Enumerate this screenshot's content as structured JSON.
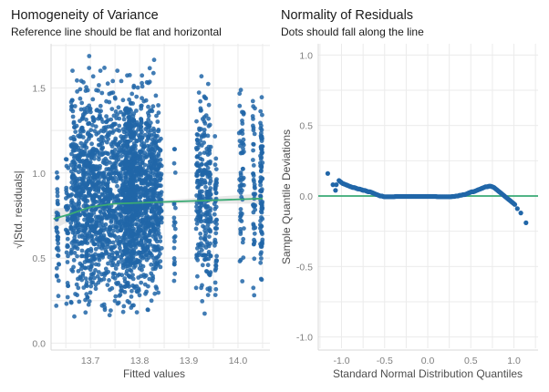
{
  "chart_data": [
    {
      "type": "scatter",
      "title": "Homogeneity of Variance",
      "subtitle": "Reference line should be flat and horizontal",
      "xlabel": "Fitted values",
      "ylabel": "√|Std. residuals|",
      "xlim": [
        13.62,
        14.065
      ],
      "ylim": [
        -0.03,
        1.76
      ],
      "xticks": [
        13.7,
        13.8,
        13.9,
        14.0
      ],
      "xtick_labels": [
        "13.7",
        "13.8",
        "13.9",
        "14.0"
      ],
      "yticks": [
        0.0,
        0.5,
        1.0,
        1.5
      ],
      "ytick_labels": [
        "0.0",
        "0.5",
        "1.0",
        "1.5"
      ],
      "grid": true,
      "point_color": "#2166a8",
      "smooth_color": "#3aaa74",
      "band_color": "#d9d9d9",
      "point_clusters": [
        {
          "x_min": 13.63,
          "x_max": 13.636,
          "y_min": 0.05,
          "y_max": 1.23,
          "count": 40
        },
        {
          "x_min": 13.65,
          "x_max": 13.655,
          "y_min": 0.1,
          "y_max": 1.25,
          "count": 35
        },
        {
          "x_min": 13.66,
          "x_max": 13.79,
          "y_min": 0.02,
          "y_max": 1.72,
          "count": 1400
        },
        {
          "x_min": 13.77,
          "x_max": 13.84,
          "y_min": 0.05,
          "y_max": 1.7,
          "count": 900
        },
        {
          "x_min": 13.84,
          "x_max": 13.845,
          "y_min": 0.15,
          "y_max": 1.55,
          "count": 40
        },
        {
          "x_min": 13.87,
          "x_max": 13.873,
          "y_min": 0.1,
          "y_max": 1.3,
          "count": 22
        },
        {
          "x_min": 13.915,
          "x_max": 13.945,
          "y_min": 0.08,
          "y_max": 1.65,
          "count": 260
        },
        {
          "x_min": 13.952,
          "x_max": 13.957,
          "y_min": 0.05,
          "y_max": 1.4,
          "count": 45
        },
        {
          "x_min": 14.002,
          "x_max": 14.012,
          "y_min": 0.25,
          "y_max": 1.75,
          "count": 60
        },
        {
          "x_min": 14.03,
          "x_max": 14.035,
          "y_min": 0.15,
          "y_max": 1.75,
          "count": 45
        },
        {
          "x_min": 14.045,
          "x_max": 14.05,
          "y_min": 0.15,
          "y_max": 1.73,
          "count": 90
        }
      ],
      "smooth_line": {
        "x": [
          13.625,
          13.66,
          13.7,
          13.75,
          13.8,
          13.85,
          13.9,
          13.95,
          14.0,
          14.05
        ],
        "y": [
          0.73,
          0.76,
          0.8,
          0.82,
          0.825,
          0.83,
          0.835,
          0.84,
          0.845,
          0.85
        ],
        "band_halfwidth": [
          0.06,
          0.04,
          0.02,
          0.01,
          0.01,
          0.01,
          0.015,
          0.02,
          0.025,
          0.03
        ]
      }
    },
    {
      "type": "scatter",
      "title": "Normality of Residuals",
      "subtitle": "Dots should fall along the line",
      "xlabel": "Standard Normal Distribution Quantiles",
      "ylabel": "Sample Quantile Deviations",
      "xlim": [
        -1.27,
        1.28
      ],
      "ylim": [
        -1.08,
        1.08
      ],
      "xticks": [
        -1.0,
        -0.5,
        0.0,
        0.5,
        1.0
      ],
      "xtick_labels": [
        "-1.0",
        "-0.5",
        "0.0",
        "0.5",
        "1.0"
      ],
      "yticks": [
        -1.0,
        -0.5,
        0.0,
        0.5,
        1.0
      ],
      "ytick_labels": [
        "-1.0",
        "-0.5",
        "0.0",
        "0.5",
        "1.0"
      ],
      "grid": true,
      "point_color": "#2166a8",
      "reference_line": {
        "y": 0.0,
        "color": "#3aaa74"
      },
      "points": {
        "x": [
          -1.16,
          -1.1,
          -1.07,
          -1.06,
          -1.03,
          -1.01,
          -0.99,
          -0.97,
          -0.95,
          -0.93,
          -0.91,
          -0.89,
          -0.87,
          -0.85,
          -0.83,
          -0.81,
          -0.79,
          -0.77,
          -0.75,
          -0.73,
          -0.71,
          -0.69,
          -0.67,
          -0.65,
          -0.63,
          -0.61,
          -0.59,
          -0.57,
          -0.55,
          -0.53,
          -0.51,
          -0.49,
          -0.47,
          -0.45,
          -0.43,
          -0.41,
          -0.39,
          -0.37,
          -0.35,
          -0.33,
          -0.31,
          -0.29,
          -0.27,
          -0.25,
          -0.23,
          -0.21,
          -0.19,
          -0.17,
          -0.15,
          -0.13,
          -0.11,
          -0.09,
          -0.07,
          -0.05,
          -0.03,
          -0.01,
          0.01,
          0.03,
          0.05,
          0.07,
          0.09,
          0.11,
          0.13,
          0.15,
          0.17,
          0.19,
          0.21,
          0.23,
          0.25,
          0.27,
          0.29,
          0.31,
          0.33,
          0.35,
          0.37,
          0.39,
          0.41,
          0.43,
          0.45,
          0.47,
          0.49,
          0.51,
          0.53,
          0.55,
          0.57,
          0.59,
          0.61,
          0.63,
          0.65,
          0.67,
          0.69,
          0.71,
          0.73,
          0.75,
          0.77,
          0.79,
          0.81,
          0.83,
          0.85,
          0.87,
          0.89,
          0.91,
          0.93,
          0.95,
          0.97,
          0.99,
          1.01,
          1.04,
          1.08,
          1.14
        ],
        "y": [
          0.16,
          0.08,
          0.04,
          0.08,
          0.11,
          0.1,
          0.09,
          0.085,
          0.08,
          0.075,
          0.07,
          0.065,
          0.06,
          0.06,
          0.055,
          0.05,
          0.05,
          0.045,
          0.04,
          0.04,
          0.035,
          0.03,
          0.03,
          0.025,
          0.02,
          0.015,
          0.01,
          0.005,
          0.0,
          0.0,
          -0.005,
          -0.005,
          -0.005,
          -0.005,
          -0.005,
          -0.005,
          -0.005,
          -0.003,
          -0.003,
          -0.003,
          -0.003,
          -0.003,
          -0.003,
          -0.003,
          -0.003,
          -0.003,
          -0.003,
          -0.003,
          -0.003,
          -0.003,
          -0.003,
          -0.003,
          -0.003,
          -0.003,
          -0.003,
          -0.003,
          -0.003,
          -0.003,
          -0.003,
          -0.003,
          -0.003,
          -0.005,
          -0.005,
          -0.005,
          -0.005,
          -0.005,
          -0.005,
          -0.005,
          -0.005,
          -0.005,
          -0.003,
          -0.003,
          0.0,
          0.0,
          0.005,
          0.005,
          0.01,
          0.01,
          0.015,
          0.02,
          0.025,
          0.03,
          0.03,
          0.035,
          0.04,
          0.045,
          0.05,
          0.055,
          0.06,
          0.065,
          0.065,
          0.07,
          0.07,
          0.065,
          0.06,
          0.05,
          0.04,
          0.03,
          0.02,
          0.01,
          0.0,
          -0.01,
          -0.02,
          -0.03,
          -0.04,
          -0.05,
          -0.06,
          -0.09,
          -0.12,
          -0.19
        ]
      }
    }
  ]
}
